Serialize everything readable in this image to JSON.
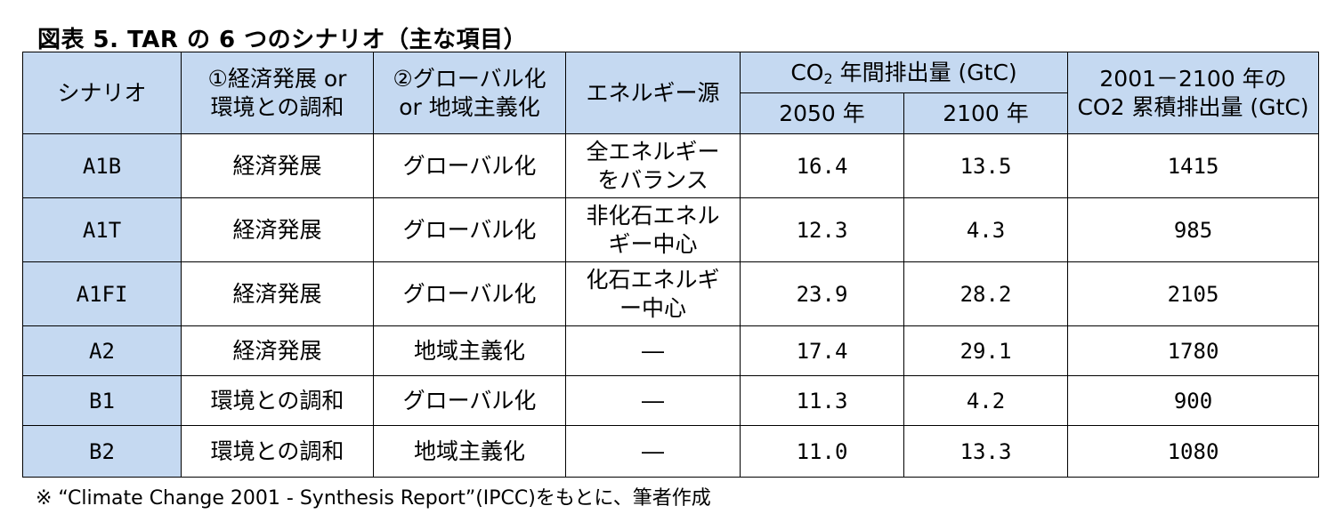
{
  "title": "図表 5. TAR の 6 つのシナリオ（主な項目）",
  "table": {
    "headers": {
      "scenario": "シナリオ",
      "col1_line1": "①経済発展 or",
      "col1_line2": "環境との調和",
      "col2_line1": "②グローバル化",
      "col2_line2": "or 地域主義化",
      "energy": "エネルギー源",
      "co2_prefix": "CO",
      "co2_sub": "2",
      "co2_suffix": " 年間排出量 (GtC)",
      "y2050": "2050 年",
      "y2100": "2100 年",
      "cum_line1": "2001－2100 年の",
      "cum_line2": "CO2 累積排出量 (GtC)"
    },
    "rows": [
      {
        "scenario": "A1B",
        "col1": "経済発展",
        "col2": "グローバル化",
        "energy_line1": "全エネルギー",
        "energy_line2": "をバランス",
        "y2050": "16.4",
        "y2100": "13.5",
        "cum": "1415"
      },
      {
        "scenario": "A1T",
        "col1": "経済発展",
        "col2": "グローバル化",
        "energy_line1": "非化石エネル",
        "energy_line2": "ギー中心",
        "y2050": "12.3",
        "y2100": "4.3",
        "cum": "985"
      },
      {
        "scenario": "A1FI",
        "col1": "経済発展",
        "col2": "グローバル化",
        "energy_line1": "化石エネルギ",
        "energy_line2": "ー中心",
        "y2050": "23.9",
        "y2100": "28.2",
        "cum": "2105"
      },
      {
        "scenario": "A2",
        "col1": "経済発展",
        "col2": "地域主義化",
        "energy_line1": "―",
        "energy_line2": "",
        "y2050": "17.4",
        "y2100": "29.1",
        "cum": "1780"
      },
      {
        "scenario": "B1",
        "col1": "環境との調和",
        "col2": "グローバル化",
        "energy_line1": "―",
        "energy_line2": "",
        "y2050": "11.3",
        "y2100": "4.2",
        "cum": "900"
      },
      {
        "scenario": "B2",
        "col1": "環境との調和",
        "col2": "地域主義化",
        "energy_line1": "―",
        "energy_line2": "",
        "y2050": "11.0",
        "y2100": "13.3",
        "cum": "1080"
      }
    ]
  },
  "footnote": "※ “Climate Change 2001 - Synthesis Report”(IPCC)をもとに、筆者作成",
  "colors": {
    "header_bg": "#c5d9f1",
    "border": "#000000"
  }
}
